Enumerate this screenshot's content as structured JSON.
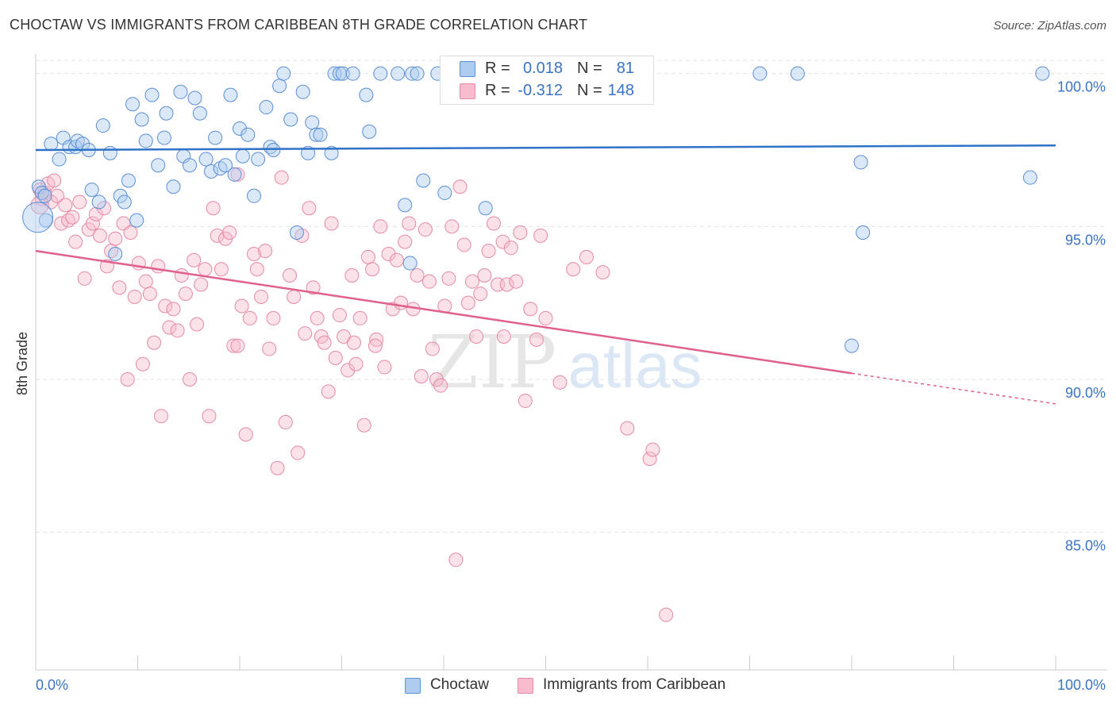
{
  "title": "CHOCTAW VS IMMIGRANTS FROM CARIBBEAN 8TH GRADE CORRELATION CHART",
  "source": "Source: ZipAtlas.com",
  "watermark": {
    "zip": "ZIP",
    "atlas": "atlas"
  },
  "legend": {
    "r_label": "R =",
    "n_label": "N =",
    "rows": [
      {
        "r": "0.018",
        "n": "81"
      },
      {
        "r": "-0.312",
        "n": "148"
      }
    ]
  },
  "colors": {
    "blue_fill": "#aecbf0",
    "blue_stroke": "#5b8fd6",
    "blue_line": "#2f73c9",
    "pink_fill": "#f7bccd",
    "pink_stroke": "#e68aa6",
    "pink_line": "#e0608e",
    "value_text": "#3b73c4",
    "grid": "#e3e3e3"
  },
  "chart_data": {
    "type": "scatter",
    "title": "CHOCTAW VS IMMIGRANTS FROM CARIBBEAN 8TH GRADE CORRELATION CHART",
    "xlabel": "",
    "ylabel": "8th Grade",
    "xlim": [
      0,
      100
    ],
    "ylim": [
      80.5,
      100.9
    ],
    "x_tick_labels": [
      "0.0%",
      "100.0%"
    ],
    "y_ticks": [
      100,
      95,
      90,
      85
    ],
    "y_tick_labels": [
      "100.0%",
      "95.0%",
      "90.0%",
      "85.0%"
    ],
    "grid": true,
    "legend_position": "top-center",
    "series": [
      {
        "name": "Choctaw",
        "color": "#5b8fd6",
        "trend": {
          "x": [
            0,
            100
          ],
          "y": [
            97.5,
            97.65
          ]
        },
        "points": [
          [
            0.3,
            96.3
          ],
          [
            0.6,
            96.1
          ],
          [
            0.9,
            96.0
          ],
          [
            1.0,
            95.2
          ],
          [
            1.5,
            97.7
          ],
          [
            2.3,
            97.2
          ],
          [
            2.7,
            97.9
          ],
          [
            3.3,
            97.6
          ],
          [
            3.9,
            97.6
          ],
          [
            4.1,
            97.8
          ],
          [
            4.6,
            97.7
          ],
          [
            5.2,
            97.5
          ],
          [
            5.5,
            96.2
          ],
          [
            6.2,
            95.8
          ],
          [
            6.6,
            98.3
          ],
          [
            7.3,
            97.4
          ],
          [
            7.8,
            94.1
          ],
          [
            8.3,
            96.0
          ],
          [
            8.7,
            95.8
          ],
          [
            9.1,
            96.5
          ],
          [
            9.5,
            99.0
          ],
          [
            9.9,
            95.2
          ],
          [
            10.4,
            98.5
          ],
          [
            10.8,
            97.8
          ],
          [
            11.4,
            99.3
          ],
          [
            12.0,
            97.0
          ],
          [
            12.6,
            97.9
          ],
          [
            12.8,
            98.7
          ],
          [
            13.5,
            96.3
          ],
          [
            14.2,
            99.4
          ],
          [
            14.5,
            97.3
          ],
          [
            15.1,
            97.0
          ],
          [
            15.6,
            99.2
          ],
          [
            16.1,
            98.7
          ],
          [
            16.7,
            97.2
          ],
          [
            17.2,
            96.8
          ],
          [
            17.6,
            97.9
          ],
          [
            18.1,
            96.9
          ],
          [
            18.6,
            97.0
          ],
          [
            19.1,
            99.3
          ],
          [
            19.5,
            96.7
          ],
          [
            20.0,
            98.2
          ],
          [
            20.3,
            97.3
          ],
          [
            20.8,
            98.0
          ],
          [
            21.4,
            96.0
          ],
          [
            21.8,
            97.2
          ],
          [
            22.6,
            98.9
          ],
          [
            23.0,
            97.6
          ],
          [
            23.3,
            97.5
          ],
          [
            23.9,
            99.6
          ],
          [
            24.3,
            100.0
          ],
          [
            25.0,
            98.5
          ],
          [
            25.6,
            94.8
          ],
          [
            26.2,
            99.4
          ],
          [
            26.7,
            97.4
          ],
          [
            27.1,
            98.4
          ],
          [
            27.5,
            98.0
          ],
          [
            27.9,
            98.0
          ],
          [
            29.0,
            97.4
          ],
          [
            29.3,
            100.0
          ],
          [
            29.8,
            100.0
          ],
          [
            30.1,
            100.0
          ],
          [
            31.1,
            100.0
          ],
          [
            32.4,
            99.3
          ],
          [
            32.7,
            98.1
          ],
          [
            33.8,
            100.0
          ],
          [
            35.5,
            100.0
          ],
          [
            36.2,
            95.7
          ],
          [
            36.7,
            93.8
          ],
          [
            36.9,
            100.0
          ],
          [
            37.4,
            100.0
          ],
          [
            38.0,
            96.5
          ],
          [
            39.4,
            100.0
          ],
          [
            40.1,
            96.1
          ],
          [
            44.1,
            95.6
          ],
          [
            71.0,
            100.0
          ],
          [
            74.7,
            100.0
          ],
          [
            80.0,
            91.1
          ],
          [
            80.9,
            97.1
          ],
          [
            81.1,
            94.8
          ],
          [
            97.5,
            96.6
          ],
          [
            98.7,
            100.0
          ]
        ]
      },
      {
        "name": "Immigrants from Caribbean",
        "color": "#e68aa6",
        "trend": {
          "x": [
            0,
            80
          ],
          "y": [
            94.2,
            90.2
          ]
        },
        "trend_dashed": {
          "x": [
            80,
            100
          ],
          "y": [
            90.2,
            89.2
          ]
        },
        "points": [
          [
            0.4,
            96.2
          ],
          [
            0.6,
            95.9
          ],
          [
            0.9,
            96.1
          ],
          [
            1.2,
            96.4
          ],
          [
            1.5,
            95.8
          ],
          [
            1.8,
            96.5
          ],
          [
            2.1,
            96.0
          ],
          [
            2.5,
            95.1
          ],
          [
            2.9,
            95.7
          ],
          [
            3.2,
            95.2
          ],
          [
            3.6,
            95.3
          ],
          [
            3.9,
            94.5
          ],
          [
            4.3,
            95.8
          ],
          [
            4.8,
            93.3
          ],
          [
            5.2,
            94.9
          ],
          [
            5.6,
            95.1
          ],
          [
            5.9,
            95.4
          ],
          [
            6.3,
            94.7
          ],
          [
            6.7,
            95.6
          ],
          [
            7.0,
            93.7
          ],
          [
            7.4,
            94.2
          ],
          [
            7.8,
            94.6
          ],
          [
            8.2,
            93.0
          ],
          [
            8.6,
            95.1
          ],
          [
            9.0,
            90.0
          ],
          [
            9.3,
            94.8
          ],
          [
            9.7,
            92.7
          ],
          [
            10.1,
            93.8
          ],
          [
            10.5,
            90.5
          ],
          [
            10.8,
            93.2
          ],
          [
            11.2,
            92.8
          ],
          [
            11.6,
            91.2
          ],
          [
            12.0,
            93.7
          ],
          [
            12.3,
            88.8
          ],
          [
            12.7,
            92.4
          ],
          [
            13.1,
            91.7
          ],
          [
            13.5,
            92.3
          ],
          [
            13.9,
            91.6
          ],
          [
            14.3,
            93.4
          ],
          [
            14.7,
            92.8
          ],
          [
            15.1,
            90.0
          ],
          [
            15.5,
            93.9
          ],
          [
            15.8,
            91.8
          ],
          [
            16.2,
            93.1
          ],
          [
            16.6,
            93.6
          ],
          [
            17.0,
            88.8
          ],
          [
            17.4,
            95.6
          ],
          [
            17.8,
            94.7
          ],
          [
            18.2,
            93.6
          ],
          [
            18.6,
            94.6
          ],
          [
            19.0,
            94.8
          ],
          [
            19.4,
            91.1
          ],
          [
            19.8,
            96.7
          ],
          [
            20.2,
            92.4
          ],
          [
            20.6,
            88.2
          ],
          [
            21.0,
            92.0
          ],
          [
            21.4,
            94.1
          ],
          [
            21.7,
            93.6
          ],
          [
            22.1,
            92.7
          ],
          [
            22.5,
            94.2
          ],
          [
            22.9,
            91.0
          ],
          [
            23.3,
            92.0
          ],
          [
            23.7,
            87.1
          ],
          [
            24.1,
            96.6
          ],
          [
            24.5,
            88.6
          ],
          [
            24.9,
            93.4
          ],
          [
            25.3,
            92.7
          ],
          [
            25.7,
            87.6
          ],
          [
            26.1,
            94.7
          ],
          [
            26.4,
            91.5
          ],
          [
            26.8,
            95.6
          ],
          [
            27.2,
            93.0
          ],
          [
            27.6,
            92.0
          ],
          [
            28.0,
            91.4
          ],
          [
            28.3,
            91.2
          ],
          [
            28.7,
            89.6
          ],
          [
            29.0,
            95.1
          ],
          [
            29.4,
            90.7
          ],
          [
            29.8,
            92.1
          ],
          [
            30.2,
            91.4
          ],
          [
            30.6,
            90.3
          ],
          [
            31.0,
            93.4
          ],
          [
            31.4,
            90.5
          ],
          [
            31.8,
            92.0
          ],
          [
            32.2,
            88.5
          ],
          [
            32.6,
            94.0
          ],
          [
            33.0,
            93.6
          ],
          [
            33.4,
            91.3
          ],
          [
            33.8,
            95.0
          ],
          [
            34.2,
            90.4
          ],
          [
            34.6,
            94.1
          ],
          [
            35.0,
            92.3
          ],
          [
            35.4,
            93.9
          ],
          [
            35.8,
            92.5
          ],
          [
            36.2,
            94.5
          ],
          [
            36.6,
            95.1
          ],
          [
            37.0,
            92.3
          ],
          [
            37.4,
            93.4
          ],
          [
            37.8,
            90.1
          ],
          [
            38.2,
            94.9
          ],
          [
            38.6,
            93.2
          ],
          [
            38.9,
            91.0
          ],
          [
            39.3,
            90.0
          ],
          [
            39.7,
            89.8
          ],
          [
            40.1,
            92.4
          ],
          [
            40.5,
            93.3
          ],
          [
            40.8,
            95.0
          ],
          [
            41.2,
            84.1
          ],
          [
            41.6,
            96.3
          ],
          [
            42.0,
            94.4
          ],
          [
            42.4,
            92.5
          ],
          [
            42.8,
            93.2
          ],
          [
            43.2,
            91.4
          ],
          [
            43.6,
            92.8
          ],
          [
            44.0,
            93.4
          ],
          [
            44.4,
            94.2
          ],
          [
            44.9,
            95.1
          ],
          [
            45.3,
            93.1
          ],
          [
            45.8,
            94.5
          ],
          [
            46.2,
            93.1
          ],
          [
            46.6,
            94.3
          ],
          [
            47.1,
            93.2
          ],
          [
            47.5,
            94.8
          ],
          [
            48.0,
            89.3
          ],
          [
            48.5,
            92.3
          ],
          [
            49.1,
            91.3
          ],
          [
            49.5,
            94.7
          ],
          [
            50.0,
            92.0
          ],
          [
            51.4,
            89.9
          ],
          [
            52.7,
            93.6
          ],
          [
            54.0,
            94.0
          ],
          [
            55.6,
            93.5
          ],
          [
            58.0,
            88.4
          ],
          [
            60.2,
            87.4
          ],
          [
            60.5,
            87.7
          ],
          [
            61.8,
            82.3
          ],
          [
            19.8,
            91.1
          ],
          [
            31.2,
            91.2
          ],
          [
            33.3,
            91.1
          ],
          [
            45.9,
            91.4
          ]
        ]
      }
    ]
  },
  "bottom_legend": [
    {
      "label": "Choctaw"
    },
    {
      "label": "Immigrants from Caribbean"
    }
  ]
}
